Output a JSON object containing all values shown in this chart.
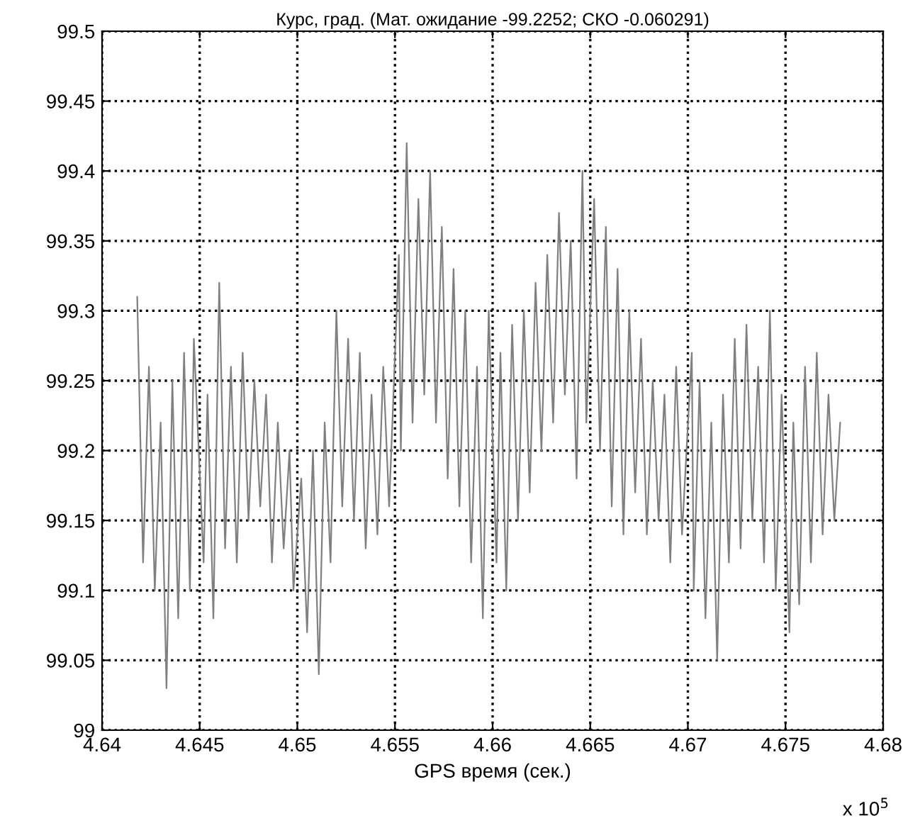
{
  "chart_data": {
    "type": "line",
    "title": "Курс, град. (Мат. ожидание -99.2252; СКО -0.060291)",
    "xlabel": "GPS время (сек.)",
    "annotations": [
      "x 10$^{5}$"
    ],
    "x": [
      4.6418,
      4.6421,
      4.6424,
      4.6427,
      4.643,
      4.6433,
      4.6436,
      4.6439,
      4.6442,
      4.6445,
      4.6447,
      4.6452,
      4.6454,
      4.6457,
      4.646,
      4.6463,
      4.6466,
      4.6469,
      4.6472,
      4.6475,
      4.6478,
      4.6481,
      4.6484,
      4.6487,
      4.649,
      4.6493,
      4.6496,
      4.6498,
      4.6502,
      4.6505,
      4.6508,
      4.6511,
      4.6514,
      4.6517,
      4.652,
      4.6523,
      4.6526,
      4.6529,
      4.6532,
      4.6535,
      4.6538,
      4.6541,
      4.6544,
      4.6547,
      4.6552,
      4.6553,
      4.6556,
      4.6559,
      4.6562,
      4.6565,
      4.6568,
      4.6571,
      4.6574,
      4.6577,
      4.658,
      4.6583,
      4.6586,
      4.6589,
      4.6592,
      4.6595,
      4.6598,
      4.6602,
      4.6604,
      4.6607,
      4.661,
      4.6613,
      4.6616,
      4.6619,
      4.6622,
      4.6625,
      4.6628,
      4.6631,
      4.6634,
      4.6637,
      4.664,
      4.6643,
      4.6646,
      4.6648,
      4.6652,
      4.6655,
      4.6658,
      4.6661,
      4.6664,
      4.6667,
      4.667,
      4.6673,
      4.6676,
      4.6679,
      4.6682,
      4.6685,
      4.6688,
      4.6691,
      4.6694,
      4.6697,
      4.6702,
      4.6703,
      4.6706,
      4.6709,
      4.6712,
      4.6715,
      4.6718,
      4.6721,
      4.6724,
      4.6727,
      4.673,
      4.6733,
      4.6736,
      4.6739,
      4.6742,
      4.6745,
      4.6748,
      4.6752,
      4.6754,
      4.6757,
      4.676,
      4.6763,
      4.6766,
      4.6769,
      4.6772,
      4.6775,
      4.6778
    ],
    "series": [
      {
        "color": "#808080",
        "values": [
          99.31,
          99.12,
          99.26,
          99.1,
          99.22,
          99.03,
          99.25,
          99.08,
          99.27,
          99.1,
          99.28,
          99.12,
          99.24,
          99.08,
          99.32,
          99.13,
          99.26,
          99.12,
          99.27,
          99.15,
          99.25,
          99.16,
          99.24,
          99.12,
          99.22,
          99.13,
          99.2,
          99.1,
          99.18,
          99.07,
          99.2,
          99.04,
          99.22,
          99.12,
          99.3,
          99.16,
          99.28,
          99.15,
          99.27,
          99.13,
          99.24,
          99.14,
          99.26,
          99.16,
          99.34,
          99.2,
          99.42,
          99.22,
          99.38,
          99.24,
          99.4,
          99.22,
          99.36,
          99.18,
          99.33,
          99.16,
          99.3,
          99.12,
          99.26,
          99.08,
          99.3,
          99.12,
          99.27,
          99.1,
          99.29,
          99.15,
          99.3,
          99.17,
          99.32,
          99.2,
          99.34,
          99.22,
          99.37,
          99.24,
          99.35,
          99.18,
          99.4,
          99.22,
          99.38,
          99.2,
          99.36,
          99.16,
          99.33,
          99.14,
          99.3,
          99.17,
          99.28,
          99.14,
          99.25,
          99.15,
          99.24,
          99.12,
          99.26,
          99.14,
          99.27,
          99.1,
          99.25,
          99.08,
          99.22,
          99.05,
          99.24,
          99.12,
          99.28,
          99.13,
          99.29,
          99.15,
          99.26,
          99.12,
          99.3,
          99.1,
          99.24,
          99.07,
          99.22,
          99.09,
          99.26,
          99.12,
          99.27,
          99.14,
          99.24,
          99.15,
          99.22
        ]
      }
    ],
    "xlim": [
      4.64,
      4.68
    ],
    "xticks": [
      4.64,
      4.645,
      4.65,
      4.655,
      4.66,
      4.665,
      4.67,
      4.675,
      4.68
    ],
    "ylim": [
      99,
      99.5
    ],
    "yticks": [
      99,
      99.05,
      99.1,
      99.15,
      99.2,
      99.25,
      99.3,
      99.35,
      99.4,
      99.45,
      99.5
    ],
    "grid": true
  }
}
